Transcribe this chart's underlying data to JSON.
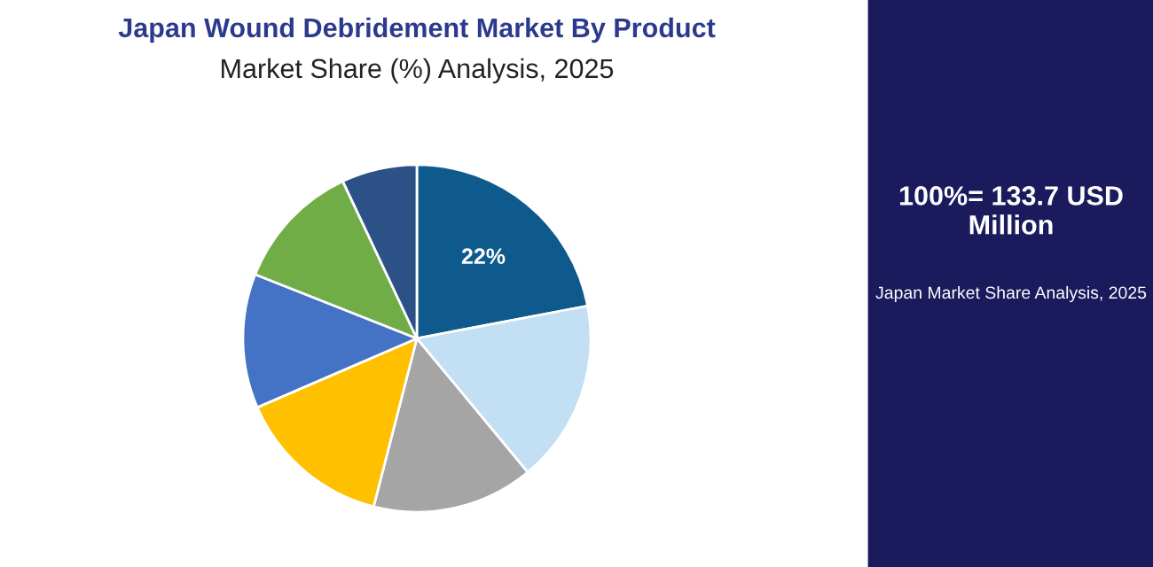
{
  "chart_data": {
    "type": "pie",
    "title": "Japan Wound Debridement Market By Product",
    "subtitle": "Market Share (%) Analysis, 2025",
    "categories": [
      null,
      null,
      null,
      null,
      null,
      null,
      null
    ],
    "values": [
      22,
      17,
      15,
      14.5,
      12.5,
      12,
      7
    ],
    "colors": [
      "#0f5a8c",
      "#c3dff3",
      "#a5a5a5",
      "#ffc000",
      "#4472c4",
      "#70ad47",
      "#2b5187"
    ],
    "value_labels": [
      "22%",
      null,
      null,
      null,
      null,
      null,
      null
    ],
    "annotations": [
      "100%= 133.7 USD Million",
      "Japan Market Share Analysis, 2025"
    ]
  }
}
